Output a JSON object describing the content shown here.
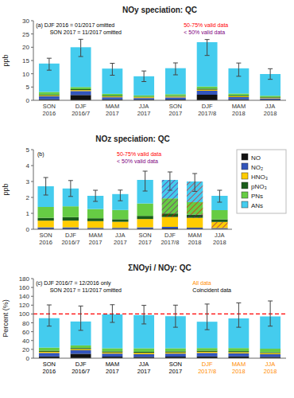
{
  "chart_data": [
    {
      "type": "bar",
      "stacked": true,
      "grid": false,
      "title": "NOy speciation: QC",
      "ylabel": "ppb",
      "categories": [
        "SON\n2016",
        "DJF\n2016/7",
        "MAM\n2017",
        "JJA\n2017",
        "SON\n2017",
        "DJF\n2017/8",
        "MAM\n2018",
        "JJA\n2018"
      ],
      "series": [
        {
          "color": "#111111",
          "values": [
            0.35,
            2.0,
            0.35,
            0.25,
            0.3,
            2.1,
            0.4,
            0.25
          ]
        },
        {
          "color": "#3355bb",
          "values": [
            1.2,
            1.5,
            0.8,
            0.6,
            0.8,
            1.5,
            0.8,
            0.5
          ]
        },
        {
          "color": "#ffcc00",
          "values": [
            0.3,
            0.35,
            0.3,
            0.3,
            0.3,
            0.4,
            0.35,
            0.25
          ]
        },
        {
          "color": "#1a5c1a",
          "values": [
            0.3,
            0.35,
            0.3,
            0.2,
            0.25,
            0.4,
            0.3,
            0.2
          ]
        },
        {
          "color": "#66cc44",
          "values": [
            1.0,
            0.8,
            0.7,
            0.5,
            0.65,
            0.8,
            0.7,
            0.5
          ]
        },
        {
          "color": "#44ccee",
          "values": [
            10.7,
            15.0,
            9.5,
            7.2,
            9.8,
            16.7,
            9.5,
            8.2
          ]
        }
      ],
      "error_low": [
        2.5,
        3.5,
        2.5,
        2.0,
        2.5,
        5.0,
        3.0,
        2.0
      ],
      "error_high": [
        2.0,
        3.0,
        2.0,
        2.0,
        2.0,
        1.0,
        2.0,
        2.0
      ],
      "ylim": [
        0,
        30
      ],
      "yticks": [
        0,
        5,
        10,
        15,
        20,
        25,
        30
      ],
      "annotations": [
        {
          "text": "(a) DJF 2016 = 01/2017 omitted",
          "color": "black"
        },
        {
          "text": "SON 2017 = 11/2017 omitted",
          "color": "black"
        },
        {
          "text": "50-75% valid data",
          "color": "red"
        },
        {
          "text": "< 50% valid data",
          "color": "purple"
        }
      ]
    },
    {
      "type": "bar",
      "stacked": true,
      "grid": false,
      "legend": "right",
      "title": "NOz speciation: QC",
      "ylabel": "ppb",
      "categories": [
        "SON\n2016",
        "DJF\n2016/7",
        "MAM\n2017",
        "JJA\n2017",
        "SON\n2017",
        "DJF\n2017/8",
        "MAM\n2018",
        "JJA\n2018"
      ],
      "series": [
        {
          "name": "NO",
          "color": "#111111",
          "values": [
            0.04,
            0.04,
            0.03,
            0.03,
            0.04,
            0.05,
            0.04,
            0.03
          ]
        },
        {
          "name": "NO₂",
          "color": "#3355bb",
          "values": [
            0.08,
            0.08,
            0.06,
            0.06,
            0.08,
            0.1,
            0.06,
            0.05
          ]
        },
        {
          "name": "HNO₃",
          "color": "#ffcc00",
          "values": [
            0.42,
            0.42,
            0.42,
            0.38,
            0.52,
            0.62,
            0.62,
            0.38
          ]
        },
        {
          "name": "pNO₃",
          "color": "#1a5c1a",
          "values": [
            0.18,
            0.22,
            0.18,
            0.16,
            0.2,
            0.22,
            0.2,
            0.16
          ]
        },
        {
          "name": "PNs",
          "color": "#66cc44",
          "values": [
            0.68,
            0.68,
            0.58,
            0.58,
            0.78,
            0.95,
            0.78,
            0.58
          ]
        },
        {
          "name": "ANs",
          "color": "#44ccee",
          "values": [
            1.3,
            1.12,
            0.83,
            1.0,
            1.48,
            1.16,
            1.3,
            0.9
          ]
        }
      ],
      "error_low": [
        0.55,
        0.5,
        0.35,
        0.42,
        0.7,
        0.65,
        0.62,
        0.4
      ],
      "error_high": [
        0.55,
        0.5,
        0.35,
        0.25,
        0.55,
        0.5,
        0.5,
        0.35
      ],
      "ylim": [
        0,
        5
      ],
      "yticks": [
        0,
        1,
        2,
        3,
        4,
        5
      ],
      "hatches": [
        {
          "category": "DJF\n2017/8",
          "series": [
            "pNO₃"
          ],
          "color": "red"
        },
        {
          "category": "DJF\n2017/8",
          "series": [
            "PNs",
            "ANs"
          ],
          "color": "purple"
        },
        {
          "category": "MAM\n2018",
          "series": [
            "PNs",
            "ANs"
          ],
          "color": "red"
        },
        {
          "category": "MAM\n2018",
          "series": [
            "pNO₃"
          ],
          "color": "purple"
        },
        {
          "category": "JJA\n2018",
          "series": [
            "HNO₃"
          ],
          "color": "purple"
        }
      ],
      "annotations": [
        {
          "text": "(b)",
          "color": "black"
        },
        {
          "text": "50-75% valid data",
          "color": "red"
        },
        {
          "text": "< 50% valid data",
          "color": "purple"
        }
      ]
    },
    {
      "type": "bar",
      "stacked": true,
      "grid": false,
      "title": "ΣNOyi / NOy: QC",
      "ylabel": "Percent (%)",
      "categories": [
        "SON\n2016",
        "DJF\n2016/7",
        "MAM\n2017",
        "JJA\n2017",
        "SON\n2017",
        "DJF\n2017/8",
        "MAM\n2018",
        "JJA\n2018"
      ],
      "category_label_colors": [
        "black",
        "black",
        "black",
        "black",
        "black",
        "darkorange",
        "darkorange",
        "darkorange"
      ],
      "series": [
        {
          "color": "#111111",
          "values": [
            4.0,
            10.0,
            3.5,
            3.0,
            3.5,
            4.0,
            4.0,
            3.0
          ]
        },
        {
          "color": "#3355bb",
          "values": [
            8.0,
            8.0,
            7.0,
            6.0,
            7.0,
            8.0,
            7.0,
            6.0
          ]
        },
        {
          "color": "#ffcc00",
          "values": [
            2.5,
            2.5,
            2.5,
            3.0,
            2.5,
            2.5,
            2.5,
            2.5
          ]
        },
        {
          "color": "#1a5c1a",
          "values": [
            2.5,
            2.5,
            2.5,
            2.5,
            2.5,
            2.5,
            2.5,
            2.0
          ]
        },
        {
          "color": "#66cc44",
          "values": [
            7.0,
            6.0,
            7.0,
            8.0,
            7.0,
            6.0,
            7.0,
            8.0
          ]
        },
        {
          "color": "#44ccee",
          "values": [
            66.5,
            54.0,
            76.5,
            75.0,
            72.5,
            59.5,
            67.0,
            73.0
          ]
        }
      ],
      "error_low": [
        18.0,
        20.0,
        18.0,
        20.0,
        25.0,
        18.0,
        20.0,
        22.0
      ],
      "error_high": [
        30.0,
        35.0,
        22.0,
        22.0,
        25.0,
        40.0,
        35.0,
        35.0
      ],
      "ylim": [
        0,
        180
      ],
      "yticks": [
        0,
        20,
        40,
        60,
        80,
        100,
        120,
        140,
        160,
        180
      ],
      "reference_line": {
        "value": 100,
        "color": "red"
      },
      "annotations": [
        {
          "text": "(c) DJF 2016/7 = 12/2016 only",
          "color": "black"
        },
        {
          "text": "SON 2017 = 11/2017 omitted",
          "color": "black"
        },
        {
          "text": "All data",
          "color": "darkorange"
        },
        {
          "text": "Coincident data",
          "color": "black"
        }
      ]
    }
  ]
}
